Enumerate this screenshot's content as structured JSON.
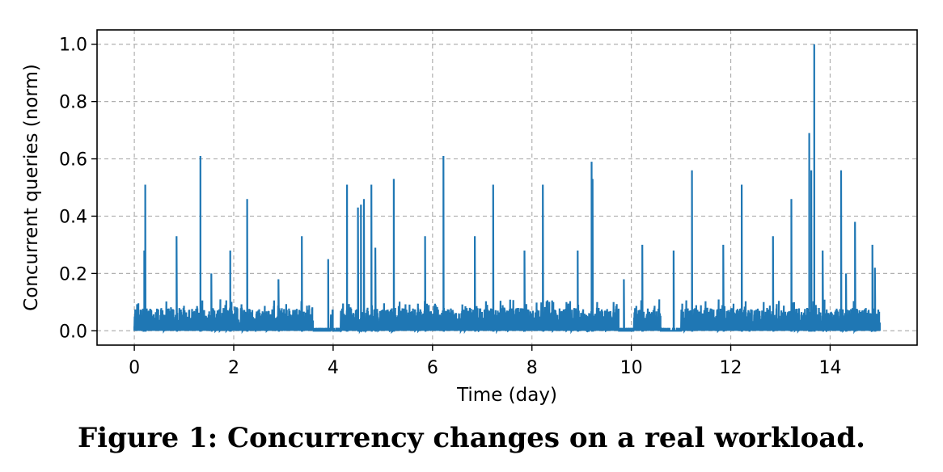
{
  "caption": "Figure 1: Concurrency changes on a real workload.",
  "chart_data": {
    "type": "line",
    "xlabel": "Time (day)",
    "ylabel": "Concurrent queries (norm)",
    "xlim": [
      -0.75,
      15.75
    ],
    "ylim": [
      -0.05,
      1.05
    ],
    "xticks": [
      0,
      2,
      4,
      6,
      8,
      10,
      12,
      14
    ],
    "yticks": [
      0.0,
      0.2,
      0.4,
      0.6,
      0.8,
      1.0
    ],
    "xtick_labels": [
      "0",
      "2",
      "4",
      "6",
      "8",
      "10",
      "12",
      "14"
    ],
    "ytick_labels": [
      "0.0",
      "0.2",
      "0.4",
      "0.6",
      "0.8",
      "1.0"
    ],
    "grid": true,
    "line_color": "#1f77b4",
    "series": [
      {
        "baseline_max": 0.08,
        "quiet_intervals": [
          [
            3.6,
            3.95
          ],
          [
            4.0,
            4.15
          ],
          [
            9.75,
            10.05
          ],
          [
            10.6,
            11.0
          ]
        ],
        "peaks": [
          {
            "x": 0.22,
            "y": 0.51
          },
          {
            "x": 0.2,
            "y": 0.28
          },
          {
            "x": 0.85,
            "y": 0.33
          },
          {
            "x": 1.33,
            "y": 0.61
          },
          {
            "x": 1.55,
            "y": 0.2
          },
          {
            "x": 1.93,
            "y": 0.28
          },
          {
            "x": 2.27,
            "y": 0.46
          },
          {
            "x": 2.9,
            "y": 0.18
          },
          {
            "x": 3.37,
            "y": 0.33
          },
          {
            "x": 3.9,
            "y": 0.25
          },
          {
            "x": 4.28,
            "y": 0.51
          },
          {
            "x": 4.5,
            "y": 0.43
          },
          {
            "x": 4.56,
            "y": 0.44
          },
          {
            "x": 4.62,
            "y": 0.46
          },
          {
            "x": 4.77,
            "y": 0.51
          },
          {
            "x": 4.85,
            "y": 0.29
          },
          {
            "x": 5.22,
            "y": 0.53
          },
          {
            "x": 5.85,
            "y": 0.33
          },
          {
            "x": 6.22,
            "y": 0.61
          },
          {
            "x": 6.85,
            "y": 0.33
          },
          {
            "x": 7.22,
            "y": 0.51
          },
          {
            "x": 7.85,
            "y": 0.28
          },
          {
            "x": 8.22,
            "y": 0.51
          },
          {
            "x": 8.92,
            "y": 0.28
          },
          {
            "x": 9.2,
            "y": 0.59
          },
          {
            "x": 9.22,
            "y": 0.53
          },
          {
            "x": 9.85,
            "y": 0.18
          },
          {
            "x": 10.22,
            "y": 0.3
          },
          {
            "x": 10.85,
            "y": 0.28
          },
          {
            "x": 11.22,
            "y": 0.56
          },
          {
            "x": 11.85,
            "y": 0.3
          },
          {
            "x": 12.22,
            "y": 0.51
          },
          {
            "x": 12.85,
            "y": 0.33
          },
          {
            "x": 13.22,
            "y": 0.46
          },
          {
            "x": 13.58,
            "y": 0.69
          },
          {
            "x": 13.62,
            "y": 0.56
          },
          {
            "x": 13.68,
            "y": 1.0
          },
          {
            "x": 13.85,
            "y": 0.28
          },
          {
            "x": 14.22,
            "y": 0.56
          },
          {
            "x": 14.32,
            "y": 0.2
          },
          {
            "x": 14.5,
            "y": 0.38
          },
          {
            "x": 14.85,
            "y": 0.3
          },
          {
            "x": 14.9,
            "y": 0.22
          }
        ]
      }
    ]
  }
}
